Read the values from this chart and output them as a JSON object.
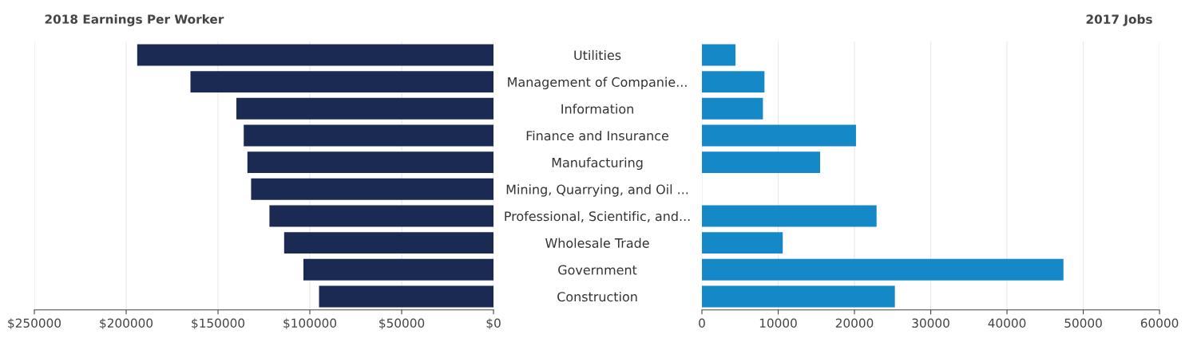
{
  "chart_data": [
    {
      "type": "bar",
      "orientation": "horizontal",
      "title": "2018 Earnings Per Worker",
      "categories": [
        "Utilities",
        "Management of Companie...",
        "Information",
        "Finance and Insurance",
        "Manufacturing",
        "Mining, Quarrying, and Oil ...",
        "Professional, Scientific, and...",
        "Wholesale Trade",
        "Government",
        "Construction"
      ],
      "values": [
        194000,
        165000,
        140000,
        136000,
        134000,
        132000,
        122000,
        114000,
        103500,
        95000
      ],
      "color": "#1a2a52",
      "xlim": [
        250000,
        0
      ],
      "xticks": [
        {
          "value": 250000,
          "label": "$250000"
        },
        {
          "value": 200000,
          "label": "$200000"
        },
        {
          "value": 150000,
          "label": "$150000"
        },
        {
          "value": 100000,
          "label": "$100000"
        },
        {
          "value": 50000,
          "label": "$50000"
        },
        {
          "value": 0,
          "label": "$0"
        }
      ],
      "grid": "x"
    },
    {
      "type": "bar",
      "orientation": "horizontal",
      "title": "2017 Jobs",
      "values": [
        4400,
        8200,
        8000,
        20200,
        15500,
        null,
        22900,
        10600,
        47400,
        25300
      ],
      "color": "#1588c8",
      "xlim": [
        0,
        60000
      ],
      "xticks": [
        0,
        10000,
        20000,
        30000,
        40000,
        50000,
        60000
      ],
      "grid": "x",
      "tick_labels": "x"
    }
  ]
}
